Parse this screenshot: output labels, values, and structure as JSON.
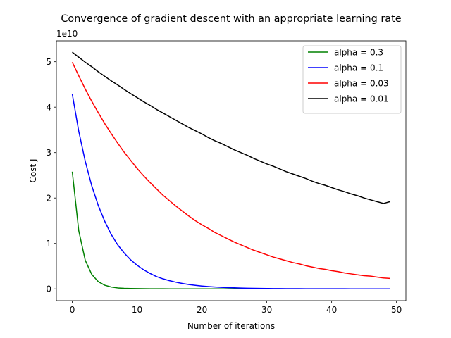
{
  "chart_data": {
    "type": "line",
    "title": "Convergence of gradient descent with an appropriate learning rate",
    "xlabel": "Number of iterations",
    "ylabel": "Cost J",
    "y_scale_label": "1e10",
    "xlim": [
      -2.45,
      51.45
    ],
    "ylim": [
      -0.26,
      5.46
    ],
    "x_ticks": [
      0,
      10,
      20,
      30,
      40,
      50
    ],
    "y_ticks": [
      0,
      1,
      2,
      3,
      4,
      5
    ],
    "grid": false,
    "legend_position": "top-right",
    "series": [
      {
        "name": "alpha = 0.3",
        "color": "#008000",
        "x": [
          0,
          1,
          2,
          3,
          4,
          5,
          6,
          7,
          8,
          9,
          10,
          11,
          12,
          13,
          14,
          15,
          16,
          17,
          18,
          19,
          20,
          21,
          22,
          23,
          24,
          25,
          26,
          27,
          28,
          29,
          30,
          31,
          32,
          33,
          34,
          35,
          36,
          37,
          38,
          39,
          40,
          41,
          42,
          43,
          44,
          45,
          46,
          47,
          48,
          49
        ],
        "values": [
          2.58,
          1.28,
          0.63,
          0.32,
          0.16,
          0.08,
          0.04,
          0.02,
          0.012,
          0.008,
          0.005,
          0.003,
          0.002,
          0.001,
          0.001,
          0,
          0,
          0,
          0,
          0,
          0,
          0,
          0,
          0,
          0,
          0,
          0,
          0,
          0,
          0,
          0,
          0,
          0,
          0,
          0,
          0,
          0,
          0,
          0,
          0,
          0,
          0,
          0,
          0,
          0,
          0,
          0,
          0,
          0,
          0
        ]
      },
      {
        "name": "alpha = 0.1",
        "color": "#0000ff",
        "x": [
          0,
          1,
          2,
          3,
          4,
          5,
          6,
          7,
          8,
          9,
          10,
          11,
          12,
          13,
          14,
          15,
          16,
          17,
          18,
          19,
          20,
          21,
          22,
          23,
          24,
          25,
          26,
          27,
          28,
          29,
          30,
          31,
          32,
          33,
          34,
          35,
          36,
          37,
          38,
          39,
          40,
          41,
          42,
          43,
          44,
          45,
          46,
          47,
          48,
          49
        ],
        "values": [
          4.29,
          3.47,
          2.81,
          2.27,
          1.84,
          1.49,
          1.2,
          0.97,
          0.79,
          0.64,
          0.52,
          0.42,
          0.34,
          0.27,
          0.22,
          0.18,
          0.146,
          0.118,
          0.095,
          0.077,
          0.062,
          0.05,
          0.041,
          0.033,
          0.027,
          0.022,
          0.018,
          0.014,
          0.011,
          0.009,
          0.007,
          0.006,
          0.005,
          0.004,
          0.003,
          0.003,
          0.002,
          0.002,
          0.002,
          0.001,
          0.001,
          0.001,
          0.001,
          0,
          0,
          0,
          0,
          0,
          0,
          0
        ]
      },
      {
        "name": "alpha = 0.03",
        "color": "#ff0000",
        "x": [
          0,
          1,
          2,
          3,
          4,
          5,
          6,
          7,
          8,
          9,
          10,
          11,
          12,
          13,
          14,
          15,
          16,
          17,
          18,
          19,
          20,
          21,
          22,
          23,
          24,
          25,
          26,
          27,
          28,
          29,
          30,
          31,
          32,
          33,
          34,
          35,
          36,
          37,
          38,
          39,
          40,
          41,
          42,
          43,
          44,
          45,
          46,
          47,
          48,
          49
        ],
        "values": [
          4.99,
          4.69,
          4.4,
          4.13,
          3.88,
          3.64,
          3.42,
          3.21,
          3.01,
          2.83,
          2.65,
          2.49,
          2.34,
          2.2,
          2.06,
          1.94,
          1.82,
          1.71,
          1.6,
          1.5,
          1.41,
          1.33,
          1.24,
          1.17,
          1.1,
          1.03,
          0.97,
          0.91,
          0.85,
          0.8,
          0.75,
          0.7,
          0.66,
          0.62,
          0.58,
          0.55,
          0.51,
          0.48,
          0.45,
          0.43,
          0.4,
          0.38,
          0.35,
          0.33,
          0.31,
          0.29,
          0.28,
          0.26,
          0.24,
          0.23
        ]
      },
      {
        "name": "alpha = 0.01",
        "color": "#000000",
        "x": [
          0,
          1,
          2,
          3,
          4,
          5,
          6,
          7,
          8,
          9,
          10,
          11,
          12,
          13,
          14,
          15,
          16,
          17,
          18,
          19,
          20,
          21,
          22,
          23,
          24,
          25,
          26,
          27,
          28,
          29,
          30,
          31,
          32,
          33,
          34,
          35,
          36,
          37,
          38,
          39,
          40,
          41,
          42,
          43,
          44,
          45,
          46,
          47,
          48,
          49
        ],
        "values": [
          5.21,
          5.1,
          4.99,
          4.89,
          4.78,
          4.68,
          4.58,
          4.49,
          4.39,
          4.3,
          4.21,
          4.12,
          4.04,
          3.95,
          3.87,
          3.79,
          3.71,
          3.63,
          3.55,
          3.48,
          3.41,
          3.33,
          3.26,
          3.2,
          3.13,
          3.06,
          3.0,
          2.94,
          2.87,
          2.81,
          2.75,
          2.7,
          2.64,
          2.58,
          2.53,
          2.48,
          2.43,
          2.37,
          2.32,
          2.28,
          2.23,
          2.18,
          2.14,
          2.09,
          2.05,
          2.0,
          1.96,
          1.92,
          1.88,
          1.92
        ]
      }
    ]
  }
}
